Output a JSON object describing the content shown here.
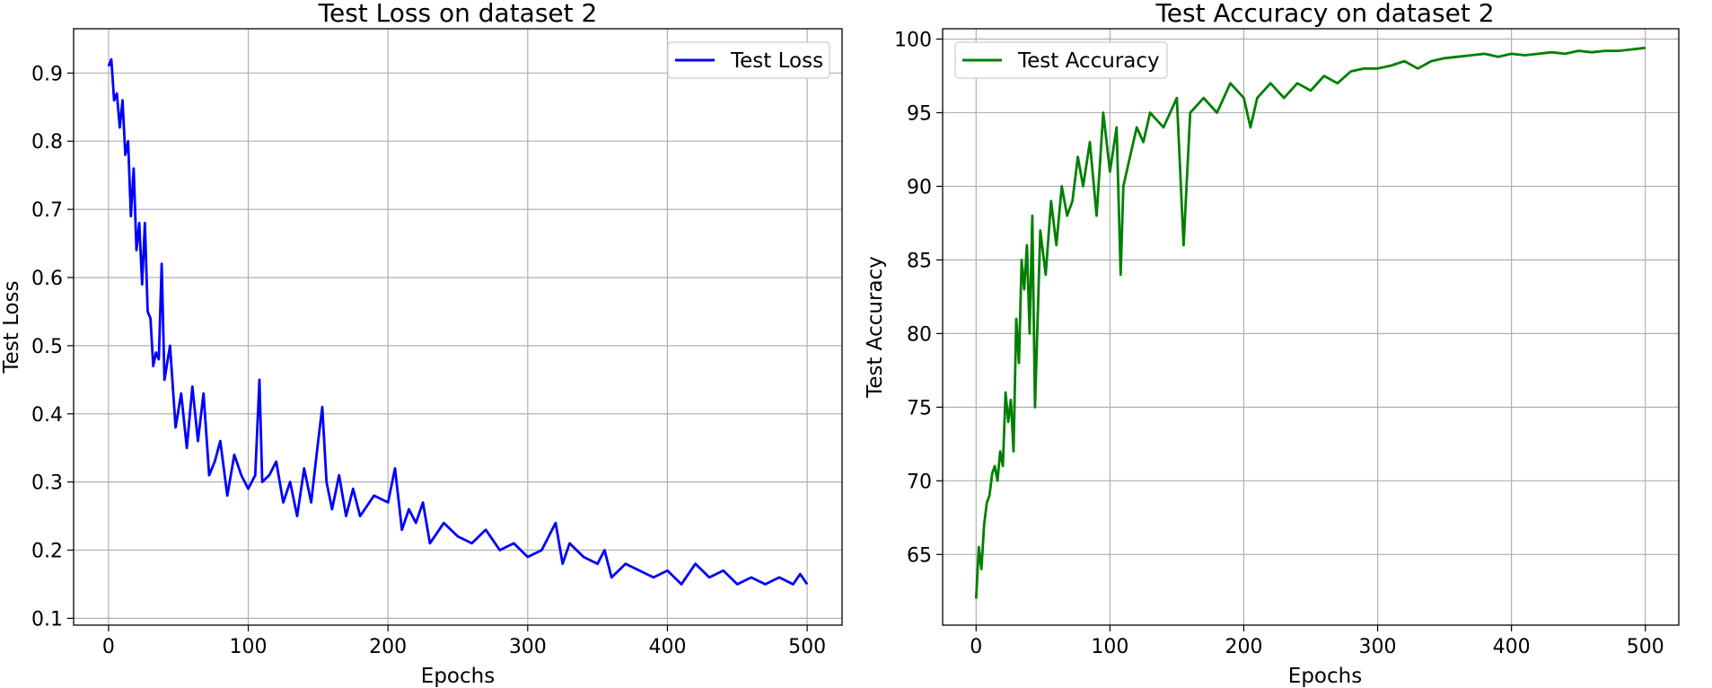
{
  "chart_data": [
    {
      "type": "line",
      "title": "Test Loss on dataset 2",
      "xlabel": "Epochs",
      "ylabel": "Test Loss",
      "xlim": [
        -25,
        525
      ],
      "ylim": [
        0.09,
        0.965
      ],
      "xticks": [
        0,
        100,
        200,
        300,
        400,
        500
      ],
      "yticks": [
        0.1,
        0.2,
        0.3,
        0.4,
        0.5,
        0.6,
        0.7,
        0.8,
        0.9
      ],
      "ytick_labels": [
        "0.1",
        "0.2",
        "0.3",
        "0.4",
        "0.5",
        "0.6",
        "0.7",
        "0.8",
        "0.9"
      ],
      "grid": true,
      "legend": "upper right",
      "series": [
        {
          "name": "Test Loss",
          "color": "#0000ff",
          "x": [
            0,
            2,
            4,
            6,
            8,
            10,
            12,
            14,
            16,
            18,
            20,
            22,
            24,
            26,
            28,
            30,
            32,
            34,
            36,
            38,
            40,
            44,
            48,
            52,
            56,
            60,
            64,
            68,
            72,
            76,
            80,
            85,
            90,
            95,
            100,
            105,
            108,
            110,
            115,
            120,
            125,
            130,
            135,
            140,
            145,
            150,
            153,
            156,
            160,
            165,
            170,
            175,
            180,
            190,
            200,
            205,
            210,
            215,
            220,
            225,
            230,
            240,
            250,
            260,
            270,
            280,
            290,
            300,
            310,
            320,
            325,
            330,
            340,
            350,
            355,
            360,
            370,
            380,
            390,
            400,
            410,
            420,
            430,
            440,
            450,
            460,
            470,
            480,
            490,
            495,
            500
          ],
          "y": [
            0.91,
            0.92,
            0.86,
            0.87,
            0.82,
            0.86,
            0.78,
            0.8,
            0.69,
            0.76,
            0.64,
            0.68,
            0.59,
            0.68,
            0.55,
            0.54,
            0.47,
            0.49,
            0.48,
            0.62,
            0.45,
            0.5,
            0.38,
            0.43,
            0.35,
            0.44,
            0.36,
            0.43,
            0.31,
            0.33,
            0.36,
            0.28,
            0.34,
            0.31,
            0.29,
            0.31,
            0.45,
            0.3,
            0.31,
            0.33,
            0.27,
            0.3,
            0.25,
            0.32,
            0.27,
            0.36,
            0.41,
            0.3,
            0.26,
            0.31,
            0.25,
            0.29,
            0.25,
            0.28,
            0.27,
            0.32,
            0.23,
            0.26,
            0.24,
            0.27,
            0.21,
            0.24,
            0.22,
            0.21,
            0.23,
            0.2,
            0.21,
            0.19,
            0.2,
            0.24,
            0.18,
            0.21,
            0.19,
            0.18,
            0.2,
            0.16,
            0.18,
            0.17,
            0.16,
            0.17,
            0.15,
            0.18,
            0.16,
            0.17,
            0.15,
            0.16,
            0.15,
            0.16,
            0.15,
            0.165,
            0.15
          ]
        }
      ]
    },
    {
      "type": "line",
      "title": "Test Accuracy on dataset 2",
      "xlabel": "Epochs",
      "ylabel": "Test Accuracy",
      "xlim": [
        -25,
        525
      ],
      "ylim": [
        60.2,
        100.7
      ],
      "xticks": [
        0,
        100,
        200,
        300,
        400,
        500
      ],
      "yticks": [
        65,
        70,
        75,
        80,
        85,
        90,
        95,
        100
      ],
      "ytick_labels": [
        "65",
        "70",
        "75",
        "80",
        "85",
        "90",
        "95",
        "100"
      ],
      "grid": true,
      "legend": "upper left",
      "series": [
        {
          "name": "Test Accuracy",
          "color": "#008000",
          "x": [
            0,
            2,
            4,
            6,
            8,
            10,
            12,
            14,
            16,
            18,
            20,
            22,
            24,
            26,
            28,
            30,
            32,
            34,
            36,
            38,
            40,
            42,
            44,
            48,
            52,
            56,
            60,
            64,
            68,
            72,
            76,
            80,
            85,
            90,
            95,
            100,
            105,
            108,
            110,
            115,
            120,
            125,
            130,
            140,
            150,
            155,
            160,
            170,
            180,
            190,
            200,
            205,
            210,
            220,
            230,
            240,
            250,
            260,
            270,
            280,
            290,
            300,
            310,
            320,
            330,
            340,
            350,
            360,
            370,
            380,
            390,
            400,
            410,
            420,
            430,
            440,
            450,
            460,
            470,
            480,
            490,
            500
          ],
          "y": [
            62,
            65.5,
            64,
            67,
            68.5,
            69,
            70.5,
            71,
            70,
            72,
            71,
            76,
            74,
            75.5,
            72,
            81,
            78,
            85,
            83,
            86,
            80,
            88,
            75,
            87,
            84,
            89,
            86,
            90,
            88,
            89,
            92,
            90,
            93,
            88,
            95,
            91,
            94,
            84,
            90,
            92,
            94,
            93,
            95,
            94,
            96,
            86,
            95,
            96,
            95,
            97,
            96,
            94,
            96,
            97,
            96,
            97,
            96.5,
            97.5,
            97,
            97.8,
            98,
            98,
            98.2,
            98.5,
            98,
            98.5,
            98.7,
            98.8,
            98.9,
            99,
            98.8,
            99,
            98.9,
            99,
            99.1,
            99,
            99.2,
            99.1,
            99.2,
            99.2,
            99.3,
            99.4
          ]
        }
      ]
    }
  ]
}
